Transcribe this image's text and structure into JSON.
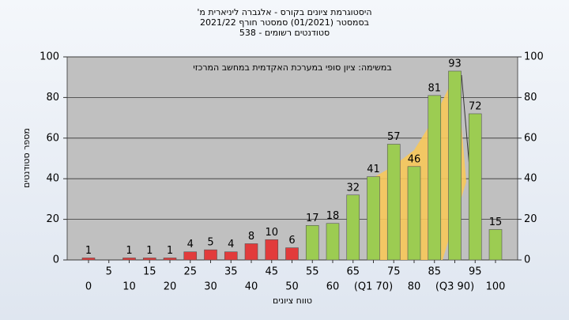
{
  "chart_data": {
    "type": "bar",
    "title": "היסטוגרמת ציונים בקורס - אלגברה ליניארית מ'",
    "subtitle": "בסמסטר  (01/2021)  סמסטר חורף  2021/22",
    "subtitle2": "סטודנטים רשומים - 538",
    "annotation": "במשימה: ציון סופי במערכת האקדמית במחשב המרכזי",
    "y_label": "מספר סטודנטים",
    "x_label": "טווח ציונים",
    "categories": [
      "0",
      "5",
      "10",
      "15",
      "20",
      "25",
      "30",
      "35",
      "40",
      "45",
      "50",
      "55",
      "60",
      "65",
      "(Q1 70)",
      "75",
      "80",
      "85",
      "(Q3 90)",
      "95",
      "100"
    ],
    "values": [
      1,
      0,
      1,
      1,
      1,
      4,
      5,
      4,
      8,
      10,
      6,
      17,
      18,
      32,
      41,
      57,
      46,
      81,
      93,
      72,
      15
    ],
    "colors": [
      "#e23b3b",
      "#e23b3b",
      "#e23b3b",
      "#e23b3b",
      "#e23b3b",
      "#e23b3b",
      "#e23b3b",
      "#e23b3b",
      "#e23b3b",
      "#e23b3b",
      "#e23b3b",
      "#9ccc52",
      "#9ccc52",
      "#9ccc52",
      "#9ccc52",
      "#9ccc52",
      "#9ccc52",
      "#9ccc52",
      "#9ccc52",
      "#9ccc52",
      "#9ccc52"
    ],
    "ylim": [
      0,
      100
    ],
    "yticks": [
      0,
      20,
      40,
      60,
      80,
      100
    ],
    "y2lim": [
      0,
      100
    ],
    "y2ticks": [
      0,
      20,
      40,
      60,
      80,
      100
    ],
    "grid": true
  }
}
